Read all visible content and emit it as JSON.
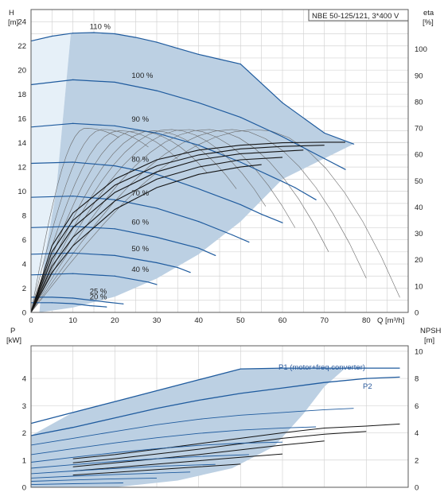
{
  "colors": {
    "speed_curve": "#1f5b9e",
    "efficiency_curve": "#141414",
    "iso_curve": "#6a6a6a",
    "envelope_fill": "#bcd0e3",
    "min_speed_fill": "#e6f0f8",
    "grid": "#d4d4d4",
    "axis": "#5a5a5a"
  },
  "chart_data": [
    {
      "type": "line",
      "title": "NBE 50-125/121, 3*400 V",
      "xlabel": "Q [m³/h]",
      "x_unit": "Q [m³/h]",
      "ylabel_left": "H",
      "yunit_left": "[m]",
      "ylabel_right": "eta",
      "yunit_right": "[%]",
      "xlim": [
        0,
        90
      ],
      "ylim": [
        0,
        25
      ],
      "y2lim": [
        0,
        115
      ],
      "xticks": [
        0,
        10,
        20,
        30,
        40,
        50,
        60,
        70,
        80
      ],
      "yticks": [
        0,
        2,
        4,
        6,
        8,
        10,
        12,
        14,
        16,
        18,
        20,
        22,
        24
      ],
      "y2ticks": [
        0,
        10,
        20,
        30,
        40,
        50,
        60,
        70,
        80,
        90,
        100
      ],
      "grid": true,
      "series": [
        {
          "name": "110 %",
          "x": [
            0,
            5,
            10,
            15,
            20,
            25,
            30,
            35,
            40,
            45,
            50,
            60,
            70,
            77
          ],
          "y": [
            22.4,
            22.8,
            23.05,
            23.1,
            23.0,
            22.7,
            22.3,
            21.8,
            21.3,
            20.9,
            20.5,
            17.3,
            14.8,
            13.9
          ]
        },
        {
          "name": "100 %",
          "x": [
            0,
            10,
            20,
            30,
            40,
            50,
            60,
            70,
            75
          ],
          "y": [
            18.8,
            19.2,
            19.0,
            18.3,
            17.3,
            16.1,
            14.5,
            12.7,
            11.8
          ]
        },
        {
          "name": "90 %",
          "x": [
            0,
            10,
            20,
            30,
            40,
            50,
            60,
            63,
            68
          ],
          "y": [
            15.3,
            15.6,
            15.4,
            14.8,
            13.8,
            12.4,
            10.8,
            10.3,
            9.3
          ]
        },
        {
          "name": "80 %",
          "x": [
            0,
            10,
            20,
            30,
            40,
            50,
            55,
            60
          ],
          "y": [
            12.3,
            12.4,
            12.1,
            11.4,
            10.2,
            8.9,
            8.1,
            7.4
          ]
        },
        {
          "name": "70 %",
          "x": [
            0,
            10,
            20,
            30,
            40,
            48,
            52
          ],
          "y": [
            9.5,
            9.6,
            9.3,
            8.6,
            7.5,
            6.4,
            5.8
          ]
        },
        {
          "name": "60 %",
          "x": [
            0,
            10,
            20,
            30,
            40,
            44
          ],
          "y": [
            7.0,
            7.1,
            6.9,
            6.2,
            5.3,
            4.7
          ]
        },
        {
          "name": "50 %",
          "x": [
            0,
            10,
            20,
            30,
            35,
            38
          ],
          "y": [
            4.8,
            4.9,
            4.7,
            4.1,
            3.7,
            3.3
          ]
        },
        {
          "name": "40 %",
          "x": [
            0,
            10,
            20,
            28,
            30
          ],
          "y": [
            3.1,
            3.2,
            3.0,
            2.5,
            2.3
          ]
        },
        {
          "name": "25 %",
          "x": [
            0,
            5,
            10,
            15,
            18,
            22
          ],
          "y": [
            1.25,
            1.25,
            1.18,
            0.98,
            0.85,
            0.7
          ]
        },
        {
          "name": "20 %",
          "x": [
            0,
            5,
            10,
            14,
            18
          ],
          "y": [
            0.8,
            0.8,
            0.72,
            0.56,
            0.45
          ]
        }
      ],
      "efficiency_curves": [
        {
          "x": [
            0,
            5,
            10,
            20,
            30,
            40,
            50,
            60,
            70,
            75
          ],
          "y": [
            0,
            5.5,
            8.2,
            11.0,
            12.6,
            13.4,
            13.8,
            14.0,
            14.05,
            14.05
          ]
        },
        {
          "x": [
            0,
            5,
            10,
            20,
            30,
            40,
            50,
            60,
            70
          ],
          "y": [
            0,
            5.0,
            7.6,
            10.5,
            12.1,
            13.0,
            13.5,
            13.7,
            13.8
          ]
        },
        {
          "x": [
            0,
            5,
            10,
            20,
            30,
            40,
            50,
            60,
            65
          ],
          "y": [
            0,
            4.4,
            7.0,
            9.9,
            11.6,
            12.6,
            13.1,
            13.3,
            13.4
          ]
        },
        {
          "x": [
            0,
            5,
            10,
            20,
            30,
            40,
            50,
            60
          ],
          "y": [
            0,
            3.8,
            6.2,
            9.2,
            11.0,
            12.0,
            12.6,
            12.8
          ]
        },
        {
          "x": [
            0,
            5,
            10,
            20,
            30,
            40,
            50,
            55
          ],
          "y": [
            0,
            3.3,
            5.5,
            8.5,
            10.3,
            11.4,
            12.0,
            12.2
          ]
        }
      ]
    },
    {
      "type": "line",
      "xlabel": "Q [m³/h]",
      "ylabel_left": "P",
      "yunit_left": "[kW]",
      "ylabel_right": "NPSH",
      "yunit_right": "[m]",
      "xlim": [
        0,
        90
      ],
      "ylim": [
        0,
        5.2
      ],
      "y2lim": [
        0,
        10.4
      ],
      "yticks": [
        0,
        1,
        2,
        3,
        4
      ],
      "y2ticks": [
        0,
        2,
        4,
        6,
        8,
        10
      ],
      "grid": true,
      "series": [
        {
          "name": "P1 (motor+freq.converter)",
          "x": [
            0,
            10,
            20,
            30,
            40,
            50,
            60,
            70,
            80,
            88
          ],
          "y": [
            2.35,
            2.75,
            3.15,
            3.55,
            3.95,
            4.35,
            4.38,
            4.38,
            4.38,
            4.38
          ]
        },
        {
          "name": "P2",
          "x": [
            0,
            10,
            20,
            30,
            40,
            50,
            60,
            70,
            80,
            88
          ],
          "y": [
            1.9,
            2.2,
            2.55,
            2.9,
            3.2,
            3.45,
            3.65,
            3.85,
            4.0,
            4.05
          ]
        }
      ],
      "speed_power_curves": [
        {
          "x": [
            0,
            10,
            20,
            30,
            40,
            50,
            60,
            70,
            77
          ],
          "y": [
            1.55,
            1.8,
            2.05,
            2.3,
            2.5,
            2.65,
            2.75,
            2.85,
            2.9
          ]
        },
        {
          "x": [
            0,
            10,
            20,
            30,
            40,
            50,
            60,
            68
          ],
          "y": [
            1.2,
            1.42,
            1.63,
            1.82,
            1.98,
            2.1,
            2.18,
            2.22
          ]
        },
        {
          "x": [
            0,
            10,
            20,
            30,
            40,
            50,
            60
          ],
          "y": [
            0.92,
            1.1,
            1.27,
            1.42,
            1.54,
            1.62,
            1.66
          ]
        },
        {
          "x": [
            0,
            10,
            20,
            30,
            40,
            52
          ],
          "y": [
            0.7,
            0.83,
            0.95,
            1.05,
            1.13,
            1.2
          ]
        },
        {
          "x": [
            0,
            10,
            20,
            30,
            44
          ],
          "y": [
            0.5,
            0.6,
            0.69,
            0.77,
            0.84
          ]
        },
        {
          "x": [
            0,
            10,
            20,
            30,
            38
          ],
          "y": [
            0.34,
            0.41,
            0.47,
            0.52,
            0.56
          ]
        },
        {
          "x": [
            0,
            10,
            20,
            30
          ],
          "y": [
            0.22,
            0.27,
            0.31,
            0.34
          ]
        },
        {
          "x": [
            0,
            10,
            22
          ],
          "y": [
            0.1,
            0.13,
            0.16
          ]
        }
      ],
      "npsh_curves": [
        {
          "x": [
            10,
            20,
            30,
            40,
            50,
            60,
            70,
            80,
            88
          ],
          "y": [
            2.1,
            2.4,
            2.8,
            3.2,
            3.6,
            4.0,
            4.35,
            4.5,
            4.65
          ]
        },
        {
          "x": [
            10,
            20,
            30,
            40,
            50,
            60,
            70,
            80
          ],
          "y": [
            1.8,
            2.1,
            2.45,
            2.8,
            3.2,
            3.6,
            3.9,
            4.1
          ]
        },
        {
          "x": [
            10,
            20,
            30,
            40,
            50,
            60,
            70
          ],
          "y": [
            1.5,
            1.8,
            2.1,
            2.4,
            2.75,
            3.1,
            3.4
          ]
        },
        {
          "x": [
            10,
            20,
            30,
            40,
            50,
            60
          ],
          "y": [
            1.2,
            1.45,
            1.7,
            1.95,
            2.2,
            2.45
          ]
        },
        {
          "x": [
            10,
            20,
            30,
            40,
            50
          ],
          "y": [
            0.9,
            1.1,
            1.3,
            1.5,
            1.7
          ]
        }
      ]
    }
  ]
}
